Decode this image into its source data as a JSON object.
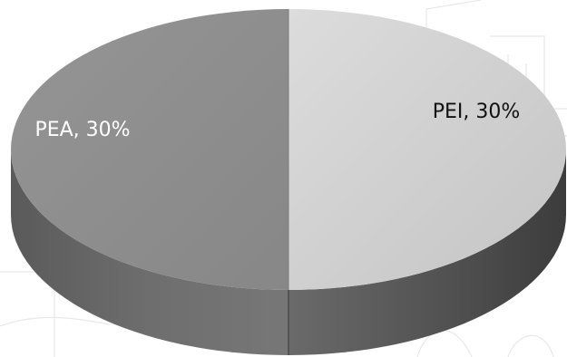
{
  "chart_data": {
    "type": "pie",
    "title": "",
    "slices": [
      {
        "label": "PEI",
        "value": 30,
        "display": "PEI, 30%",
        "color": "#d2d2d2"
      },
      {
        "label": "PEA",
        "value": 30,
        "display": "PEA, 30%",
        "color": "#8e8e8e"
      }
    ]
  }
}
